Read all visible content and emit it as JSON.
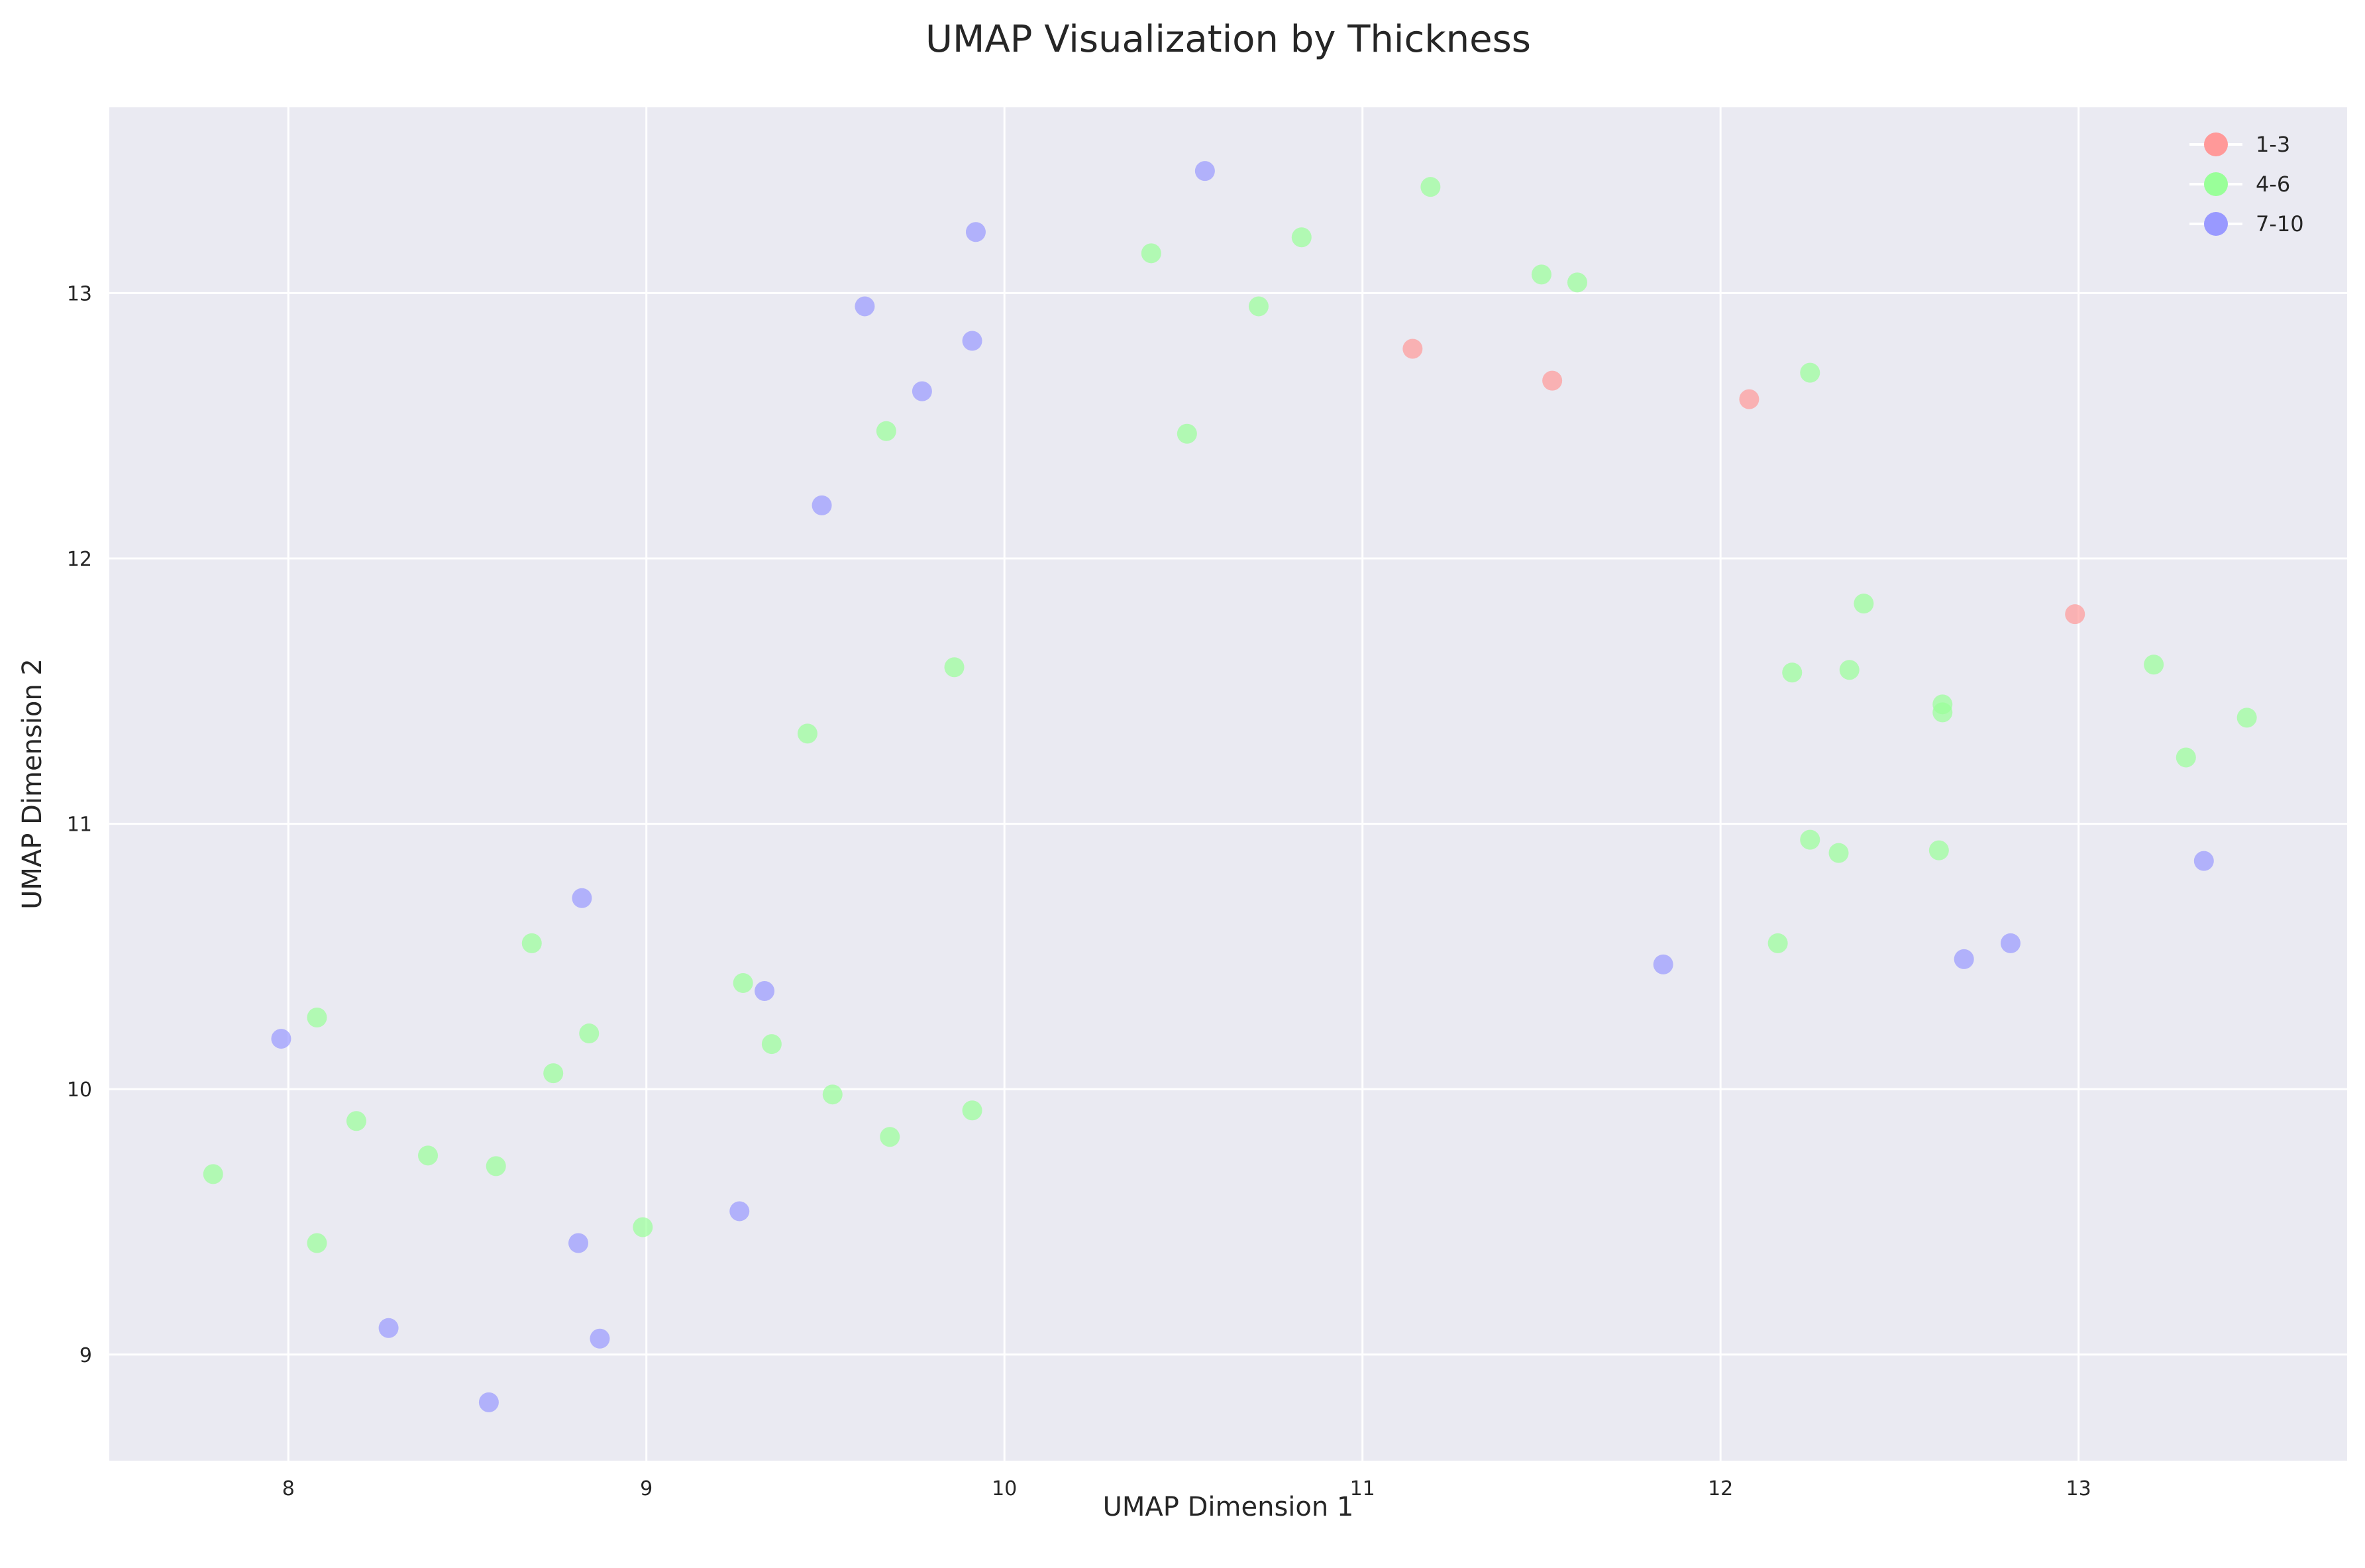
{
  "chart_data": {
    "type": "scatter",
    "title": "UMAP Visualization by Thickness",
    "xlabel": "UMAP Dimension 1",
    "ylabel": "UMAP Dimension 2",
    "xlim": [
      7.5,
      13.75
    ],
    "ylim": [
      8.6,
      13.7
    ],
    "xticks": [
      8,
      9,
      10,
      11,
      12,
      13
    ],
    "yticks": [
      9,
      10,
      11,
      12,
      13
    ],
    "grid": true,
    "legend_position": "top-right",
    "series": [
      {
        "name": "1-3",
        "color": "#ff9999",
        "x": [
          11.14,
          11.53,
          12.08,
          12.99
        ],
        "y": [
          12.79,
          12.67,
          12.6,
          11.79
        ]
      },
      {
        "name": "4-6",
        "color": "#99ff99",
        "x": [
          11.19,
          10.83,
          10.41,
          11.5,
          11.6,
          10.71,
          12.25,
          9.67,
          10.51,
          12.4,
          9.86,
          12.2,
          12.36,
          12.62,
          12.62,
          13.21,
          13.47,
          13.3,
          9.45,
          12.25,
          12.33,
          12.61,
          12.16,
          8.68,
          8.08,
          9.27,
          8.84,
          9.35,
          8.74,
          9.52,
          8.19,
          9.91,
          9.68,
          8.39,
          8.58,
          7.79,
          8.99,
          8.08
        ],
        "y": [
          13.4,
          13.21,
          13.15,
          13.07,
          13.04,
          12.95,
          12.7,
          12.48,
          12.47,
          11.83,
          11.59,
          11.57,
          11.58,
          11.45,
          11.42,
          11.6,
          11.4,
          11.25,
          11.34,
          10.94,
          10.89,
          10.9,
          10.55,
          10.55,
          10.27,
          10.4,
          10.21,
          10.17,
          10.06,
          9.98,
          9.88,
          9.92,
          9.82,
          9.75,
          9.71,
          9.68,
          9.48,
          9.42
        ]
      },
      {
        "name": "7-10",
        "color": "#9999ff",
        "x": [
          10.56,
          9.92,
          9.61,
          9.91,
          9.77,
          9.49,
          13.35,
          12.81,
          12.68,
          11.84,
          8.82,
          9.33,
          7.98,
          9.26,
          8.81,
          8.28,
          8.87,
          8.56
        ],
        "y": [
          13.46,
          13.23,
          12.95,
          12.82,
          12.63,
          12.2,
          10.86,
          10.55,
          10.49,
          10.47,
          10.72,
          10.37,
          10.19,
          9.54,
          9.42,
          9.1,
          9.06,
          8.82
        ]
      }
    ]
  }
}
